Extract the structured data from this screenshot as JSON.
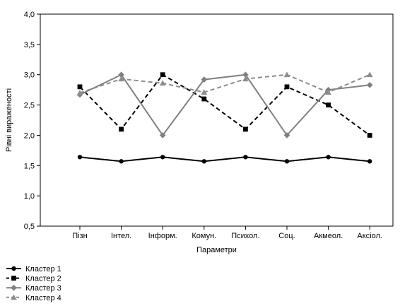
{
  "chart_data": {
    "type": "line",
    "title": "",
    "xlabel": "Параметри",
    "ylabel": "Рівні вираженості",
    "categories": [
      "Пізн",
      "Інтел.",
      "Інформ.",
      "Комун.",
      "Психол.",
      "Соц.",
      "Акмеол.",
      "Аксіол."
    ],
    "ylim": [
      0.5,
      4.0
    ],
    "yticks": [
      "4,0",
      "3,5",
      "3,0",
      "2,5",
      "2,0",
      "1,5",
      "1,0",
      "0,5"
    ],
    "ytick_values": [
      4.0,
      3.5,
      3.0,
      2.5,
      2.0,
      1.5,
      1.0,
      0.5
    ],
    "grid": false,
    "legend_position": "bottom-left",
    "series": [
      {
        "name": "Кластер  1",
        "values": [
          1.64,
          1.57,
          1.64,
          1.57,
          1.64,
          1.57,
          1.64,
          1.57
        ],
        "color": "#000000",
        "dash": "solid",
        "marker": "circle"
      },
      {
        "name": "Кластер  2",
        "values": [
          2.8,
          2.1,
          3.0,
          2.6,
          2.1,
          2.8,
          2.5,
          2.0
        ],
        "color": "#000000",
        "dash": "dashed",
        "marker": "square"
      },
      {
        "name": "Кластер  3",
        "values": [
          2.67,
          3.0,
          2.0,
          2.92,
          3.0,
          2.0,
          2.75,
          2.83
        ],
        "color": "#808080",
        "dash": "solid",
        "marker": "diamond"
      },
      {
        "name": "Кластер  4",
        "values": [
          2.7,
          2.93,
          2.86,
          2.71,
          2.93,
          3.0,
          2.71,
          3.0
        ],
        "color": "#8c8c8c",
        "dash": "dashed",
        "marker": "triangle"
      }
    ]
  }
}
